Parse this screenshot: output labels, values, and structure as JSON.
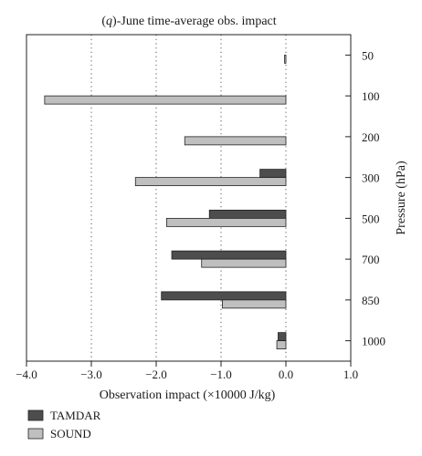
{
  "chart_data": {
    "type": "bar",
    "orientation": "horizontal",
    "title_prefix": "q",
    "title_rest": "-June time-average obs. impact",
    "xlabel": "Observation impact (×10000 J/kg)",
    "ylabel": "Pressure (hPa)",
    "xlim": [
      -4.0,
      1.0
    ],
    "x_ticks": [
      -4.0,
      -3.0,
      -2.0,
      -1.0,
      0.0,
      1.0
    ],
    "x_tick_labels": [
      "−4.0",
      "−3.0",
      "−2.0",
      "−1.0",
      "0.0",
      "1.0"
    ],
    "grid": "vertical dotted at x ticks",
    "categories": [
      "50",
      "100",
      "200",
      "300",
      "500",
      "700",
      "850",
      "1000"
    ],
    "series": [
      {
        "name": "TAMDAR",
        "color": "#4d4d4d",
        "values": [
          null,
          null,
          null,
          -0.4,
          -1.18,
          -1.76,
          -1.92,
          -0.12
        ]
      },
      {
        "name": "SOUND",
        "color": "#bfbfbf",
        "values": [
          -0.02,
          -3.72,
          -1.56,
          -2.32,
          -1.84,
          -1.3,
          -0.98,
          -0.14
        ]
      }
    ],
    "legend": "bottom-left"
  }
}
